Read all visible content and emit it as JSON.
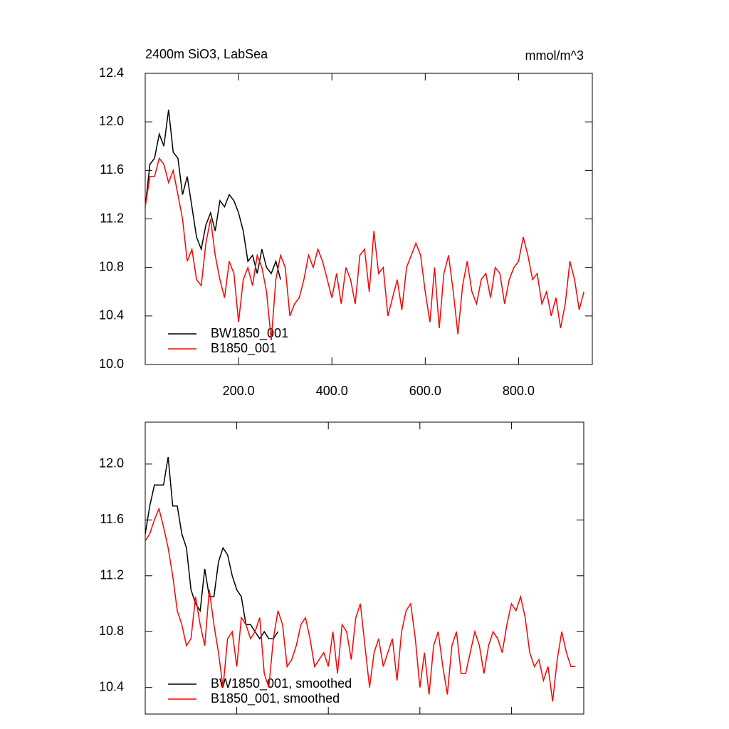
{
  "chart_data": [
    {
      "type": "line",
      "title": "2400m SiO3, LabSea",
      "right_title": "mmol/m^3",
      "xlim": [
        0,
        958
      ],
      "ylim": [
        10.0,
        12.4
      ],
      "xticks": [
        {
          "value": 200,
          "label": "200.0"
        },
        {
          "value": 400,
          "label": "400.0"
        },
        {
          "value": 600,
          "label": "600.0"
        },
        {
          "value": 800,
          "label": "800.0"
        }
      ],
      "yticks": [
        {
          "value": 10.0,
          "label": "10.0"
        },
        10.4,
        10.8,
        11.2,
        11.6,
        {
          "value": 12.0,
          "label": "12.0"
        },
        12.4
      ],
      "series": [
        {
          "name": "BW1850_001",
          "color": "#000000",
          "x": [
            0,
            10,
            20,
            30,
            40,
            50,
            60,
            70,
            80,
            90,
            100,
            110,
            120,
            130,
            140,
            150,
            160,
            170,
            180,
            190,
            200,
            210,
            220,
            230,
            240,
            250,
            260,
            270,
            280,
            290
          ],
          "values": [
            11.3,
            11.65,
            11.7,
            11.9,
            11.8,
            12.1,
            11.75,
            11.7,
            11.4,
            11.55,
            11.3,
            11.05,
            10.95,
            11.15,
            11.25,
            11.1,
            11.35,
            11.3,
            11.4,
            11.35,
            11.25,
            11.1,
            10.85,
            10.9,
            10.75,
            10.95,
            10.8,
            10.75,
            10.85,
            10.7
          ]
        },
        {
          "name": "B1850_001",
          "color": "#ff0000",
          "x": [
            0,
            10,
            20,
            30,
            40,
            50,
            60,
            70,
            80,
            90,
            100,
            110,
            120,
            130,
            140,
            150,
            160,
            170,
            180,
            190,
            200,
            210,
            220,
            230,
            240,
            250,
            260,
            270,
            280,
            290,
            300,
            310,
            320,
            330,
            340,
            350,
            360,
            370,
            380,
            390,
            400,
            410,
            420,
            430,
            440,
            450,
            460,
            470,
            480,
            490,
            500,
            510,
            520,
            530,
            540,
            550,
            560,
            570,
            580,
            590,
            600,
            610,
            620,
            630,
            640,
            650,
            660,
            670,
            680,
            690,
            700,
            710,
            720,
            730,
            740,
            750,
            760,
            770,
            780,
            790,
            800,
            810,
            820,
            830,
            840,
            850,
            860,
            870,
            880,
            890,
            900,
            910,
            920,
            930,
            940
          ],
          "values": [
            11.3,
            11.55,
            11.55,
            11.7,
            11.65,
            11.5,
            11.6,
            11.4,
            11.2,
            10.85,
            10.95,
            10.7,
            10.65,
            11.0,
            11.2,
            10.9,
            10.7,
            10.55,
            10.85,
            10.75,
            10.35,
            10.7,
            10.8,
            10.65,
            10.9,
            10.8,
            10.6,
            10.2,
            10.7,
            10.9,
            10.8,
            10.4,
            10.5,
            10.55,
            10.7,
            10.9,
            10.8,
            10.95,
            10.85,
            10.7,
            10.55,
            10.75,
            10.5,
            10.8,
            10.7,
            10.5,
            10.9,
            10.95,
            10.6,
            11.1,
            10.75,
            10.8,
            10.4,
            10.55,
            10.7,
            10.45,
            10.8,
            10.9,
            11.0,
            10.9,
            10.6,
            10.35,
            10.8,
            10.3,
            10.75,
            10.9,
            10.6,
            10.25,
            10.65,
            10.85,
            10.6,
            10.5,
            10.7,
            10.75,
            10.55,
            10.8,
            10.75,
            10.5,
            10.7,
            10.8,
            10.85,
            11.05,
            10.9,
            10.7,
            10.75,
            10.5,
            10.6,
            10.4,
            10.55,
            10.3,
            10.5,
            10.85,
            10.7,
            10.45,
            10.6
          ]
        }
      ]
    },
    {
      "type": "line",
      "xlim": [
        0,
        958
      ],
      "ylim": [
        10.21,
        12.3
      ],
      "xticks": [
        200,
        400,
        600,
        800
      ],
      "yticks": [
        10.4,
        10.8,
        11.2,
        11.6,
        {
          "value": 12.0,
          "label": "12.0"
        }
      ],
      "series": [
        {
          "name": "BW1850_001, smoothed",
          "color": "#000000",
          "x": [
            0,
            10,
            20,
            30,
            40,
            50,
            60,
            70,
            80,
            90,
            100,
            110,
            120,
            130,
            140,
            150,
            160,
            170,
            180,
            190,
            200,
            210,
            220,
            230,
            240,
            250,
            260,
            270,
            280,
            290
          ],
          "values": [
            11.5,
            11.7,
            11.85,
            11.85,
            11.85,
            12.05,
            11.7,
            11.7,
            11.5,
            11.4,
            11.1,
            11.0,
            10.95,
            11.25,
            11.05,
            11.05,
            11.3,
            11.4,
            11.35,
            11.2,
            11.1,
            11.05,
            10.85,
            10.85,
            10.8,
            10.75,
            10.8,
            10.75,
            10.75,
            10.8
          ]
        },
        {
          "name": "B1850_001, smoothed",
          "color": "#ff0000",
          "x": [
            0,
            10,
            20,
            30,
            40,
            50,
            60,
            70,
            80,
            90,
            100,
            110,
            120,
            130,
            140,
            150,
            160,
            170,
            180,
            190,
            200,
            210,
            220,
            230,
            240,
            250,
            260,
            270,
            280,
            290,
            300,
            310,
            320,
            330,
            340,
            350,
            360,
            370,
            380,
            390,
            400,
            410,
            420,
            430,
            440,
            450,
            460,
            470,
            480,
            490,
            500,
            510,
            520,
            530,
            540,
            550,
            560,
            570,
            580,
            590,
            600,
            610,
            620,
            630,
            640,
            650,
            660,
            670,
            680,
            690,
            700,
            710,
            720,
            730,
            740,
            750,
            760,
            770,
            780,
            790,
            800,
            810,
            820,
            830,
            840,
            850,
            860,
            870,
            880,
            890,
            900,
            910,
            920,
            930,
            940
          ],
          "values": [
            11.45,
            11.5,
            11.6,
            11.68,
            11.55,
            11.4,
            11.2,
            10.95,
            10.85,
            10.7,
            10.75,
            11.05,
            10.85,
            10.7,
            11.1,
            10.85,
            10.65,
            10.4,
            10.75,
            10.8,
            10.55,
            10.9,
            10.85,
            10.75,
            10.8,
            10.9,
            10.5,
            10.4,
            10.75,
            10.95,
            10.85,
            10.55,
            10.6,
            10.7,
            10.85,
            10.9,
            10.75,
            10.55,
            10.6,
            10.65,
            10.55,
            10.8,
            10.5,
            10.85,
            10.8,
            10.6,
            10.9,
            11.0,
            10.7,
            10.4,
            10.65,
            10.75,
            10.55,
            10.65,
            10.75,
            10.45,
            10.8,
            10.95,
            11.0,
            10.75,
            10.4,
            10.65,
            10.35,
            10.7,
            10.8,
            10.55,
            10.35,
            10.7,
            10.8,
            10.5,
            10.5,
            10.65,
            10.8,
            10.7,
            10.5,
            10.7,
            10.8,
            10.75,
            10.65,
            10.85,
            11.0,
            10.95,
            11.05,
            10.9,
            10.65,
            10.55,
            10.6,
            10.45,
            10.55,
            10.3,
            10.6,
            10.8,
            10.65,
            10.55,
            10.55
          ]
        }
      ]
    }
  ]
}
